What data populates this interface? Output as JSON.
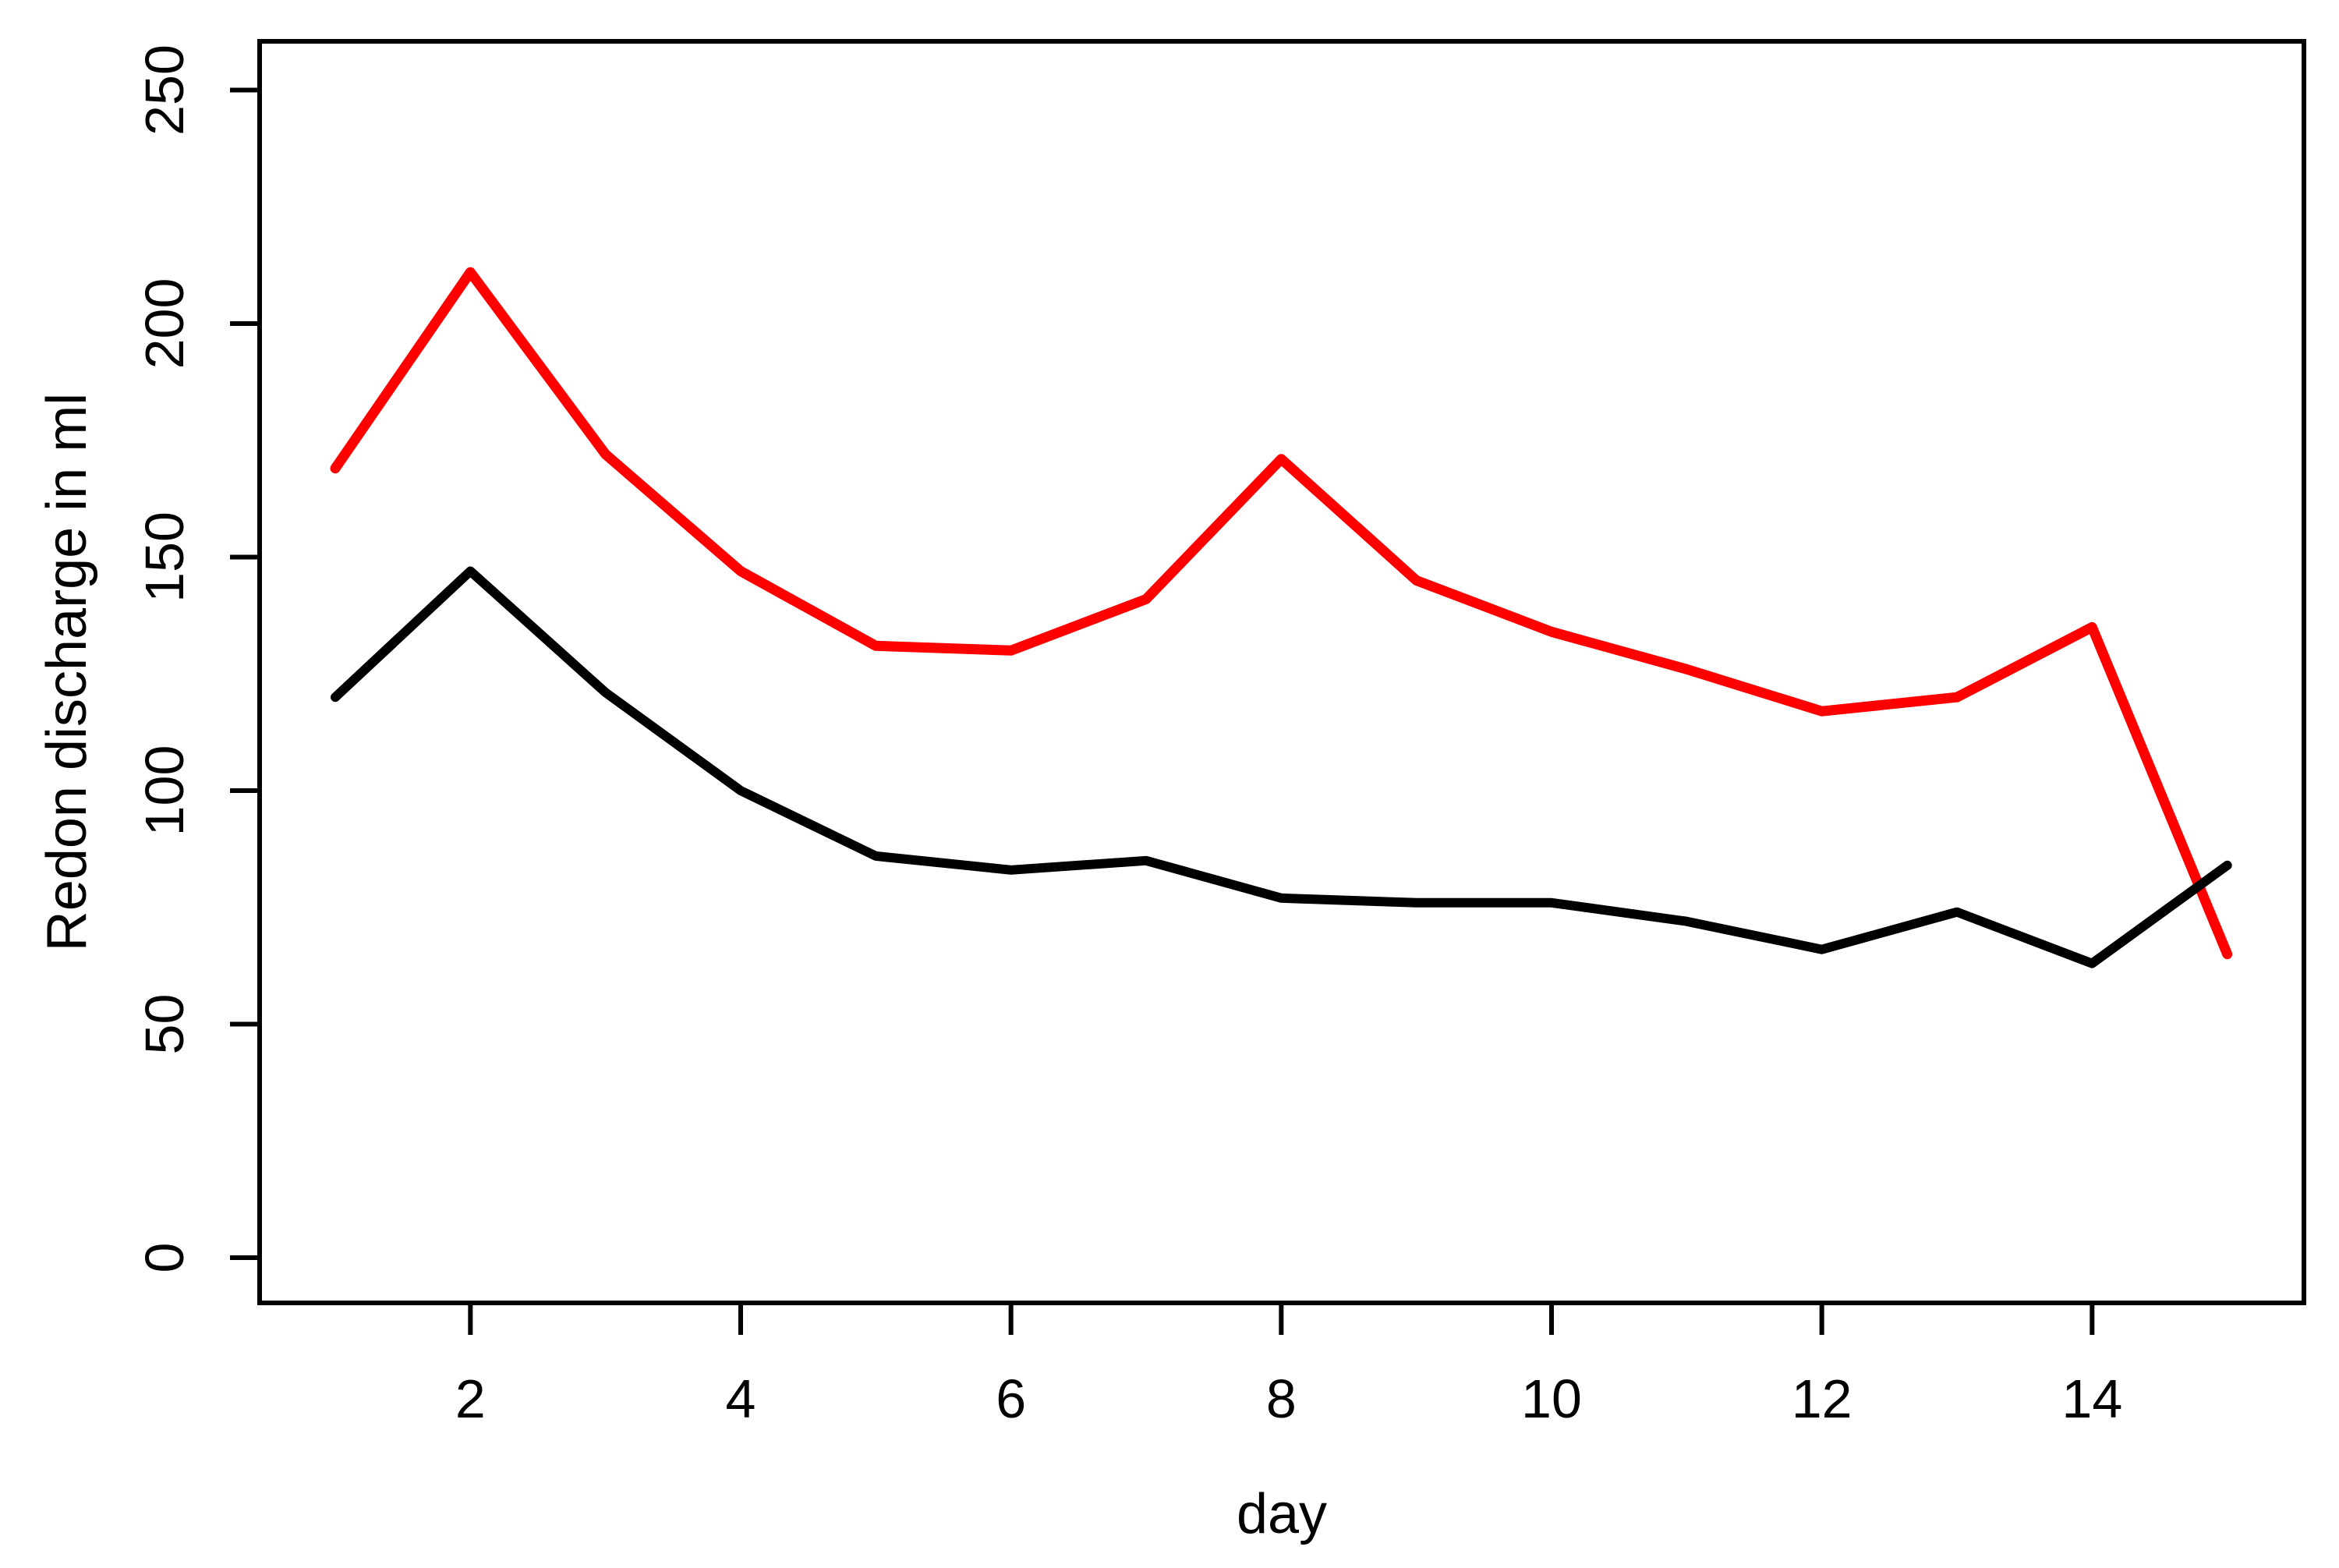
{
  "chart_data": {
    "type": "line",
    "title": "",
    "xlabel": "day",
    "ylabel": "Redon discharge in ml",
    "x": [
      1,
      2,
      3,
      4,
      5,
      6,
      7,
      8,
      9,
      10,
      11,
      12,
      13,
      14,
      15
    ],
    "series": [
      {
        "name": "red line",
        "color": "#fe0000",
        "values": [
          169,
          211,
          172,
          147,
          131,
          130,
          141,
          171,
          145,
          134,
          126,
          117,
          120,
          135,
          65
        ]
      },
      {
        "name": "black line",
        "color": "#000000",
        "values": [
          120,
          147,
          121,
          100,
          86,
          83,
          85,
          77,
          76,
          76,
          72,
          66,
          74,
          63,
          84
        ]
      }
    ],
    "x_ticks": [
      2,
      4,
      6,
      8,
      10,
      12,
      14
    ],
    "y_ticks": [
      0,
      50,
      100,
      150,
      200,
      250
    ],
    "xlim": [
      1,
      15
    ],
    "ylim": [
      0,
      250
    ],
    "grid": "off",
    "legend": "none",
    "frame_color": "#000000",
    "background_color": "#ffffff"
  }
}
